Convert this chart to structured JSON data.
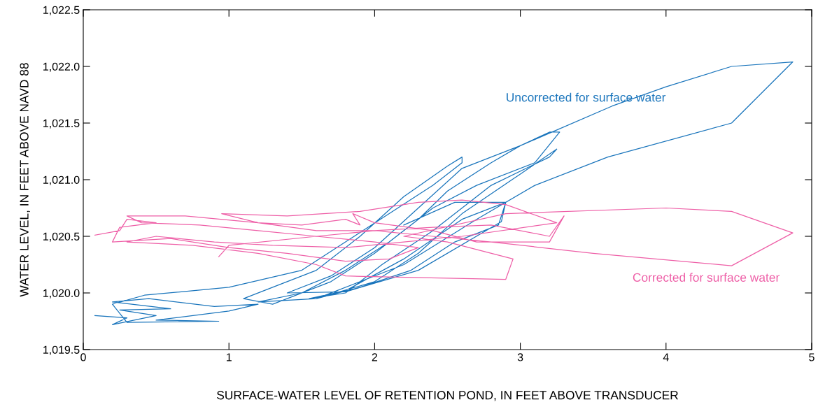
{
  "chart_data": {
    "type": "line",
    "xlabel": "SURFACE-WATER LEVEL OF RETENTION POND, IN FEET ABOVE TRANSDUCER",
    "ylabel": "WATER LEVEL, IN FEET ABOVE NAVD 88",
    "xlim": [
      0,
      5
    ],
    "xticks": [
      0,
      1,
      2,
      3,
      4,
      5
    ],
    "ylim": [
      1019.5,
      1022.5
    ],
    "yticks": [
      {
        "value": 1019.5,
        "label": "1,019.5"
      },
      {
        "value": 1020.0,
        "label": "1,020.0"
      },
      {
        "value": 1020.5,
        "label": "1,020.5"
      },
      {
        "value": 1021.0,
        "label": "1,021.0"
      },
      {
        "value": 1021.5,
        "label": "1,021.5"
      },
      {
        "value": 1022.0,
        "label": "1,022.0"
      },
      {
        "value": 1022.5,
        "label": "1,022.5"
      }
    ],
    "grid": false,
    "legend": false,
    "marker": "none",
    "line_style": "solid",
    "series": [
      {
        "name": "Uncorrected for surface water",
        "color": "#1a75bc",
        "x": [
          0.08,
          0.3,
          0.2,
          0.5,
          0.25,
          0.6,
          0.2,
          0.45,
          0.9,
          1.2,
          1.0,
          0.5,
          0.93,
          0.3,
          0.2,
          0.42,
          1.0,
          1.5,
          1.8,
          2.1,
          2.4,
          2.6,
          2.6,
          2.5,
          2.2,
          1.9,
          1.6,
          1.3,
          1.1,
          1.3,
          1.7,
          2.0,
          2.3,
          2.5,
          2.8,
          3.0,
          3.2,
          3.27,
          3.1,
          2.7,
          2.4,
          2.1,
          1.8,
          1.5,
          1.2,
          1.6,
          2.0,
          2.3,
          2.6,
          3.0,
          3.25,
          3.2,
          2.8,
          2.4,
          2.05,
          1.8,
          1.55,
          1.8,
          2.2,
          2.6,
          2.9,
          2.85,
          2.55,
          2.25,
          1.9,
          1.6,
          2.2,
          2.7,
          3.1,
          3.6,
          4.45,
          4.87,
          4.45,
          4.0,
          3.63,
          3.0,
          2.6,
          2.3,
          2.0,
          1.7,
          1.4,
          1.8,
          2.3,
          2.87,
          2.9,
          2.55,
          2.2
        ],
        "values": [
          1019.8,
          1019.78,
          1019.72,
          1019.8,
          1019.85,
          1019.86,
          1019.92,
          1019.95,
          1019.88,
          1019.9,
          1019.84,
          1019.76,
          1019.75,
          1019.74,
          1019.9,
          1019.98,
          1020.05,
          1020.2,
          1020.45,
          1020.7,
          1020.95,
          1021.15,
          1021.2,
          1021.12,
          1020.85,
          1020.5,
          1020.2,
          1020.05,
          1019.95,
          1019.9,
          1020.1,
          1020.35,
          1020.65,
          1020.9,
          1021.15,
          1021.3,
          1021.42,
          1021.42,
          1021.15,
          1020.95,
          1020.75,
          1020.45,
          1020.2,
          1020.0,
          1019.92,
          1019.95,
          1020.1,
          1020.35,
          1020.7,
          1021.05,
          1021.27,
          1021.2,
          1020.95,
          1020.55,
          1020.25,
          1020.0,
          1019.95,
          1020.02,
          1020.3,
          1020.65,
          1020.8,
          1020.6,
          1020.45,
          1020.2,
          1020.05,
          1019.95,
          1020.25,
          1020.65,
          1020.95,
          1021.2,
          1021.5,
          1022.04,
          1022.0,
          1021.82,
          1021.65,
          1021.3,
          1021.1,
          1020.75,
          1020.4,
          1020.15,
          1020.0,
          1020.01,
          1020.2,
          1020.63,
          1020.8,
          1020.8,
          1020.6
        ]
      },
      {
        "name": "Corrected for surface water",
        "color": "#ee5fa7",
        "x": [
          0.08,
          0.25,
          0.3,
          0.5,
          0.25,
          0.2,
          0.6,
          1.0,
          1.4,
          1.8,
          2.1,
          2.3,
          2.0,
          1.6,
          1.2,
          0.8,
          0.4,
          0.3,
          0.7,
          1.2,
          1.6,
          2.0,
          2.4,
          2.8,
          3.2,
          3.3,
          3.2,
          2.7,
          2.4,
          2.0,
          1.85,
          1.9,
          1.8,
          1.5,
          1.2,
          0.95,
          1.4,
          1.9,
          2.3,
          2.6,
          2.9,
          3.25,
          2.6,
          2.2,
          1.8,
          1.3,
          0.9,
          0.5,
          0.3,
          0.75,
          1.2,
          1.6,
          1.8,
          2.9,
          2.95,
          2.5,
          2.2,
          2.9,
          4.0,
          4.45,
          4.87,
          4.45,
          3.5,
          2.8,
          2.4,
          2.0,
          1.6,
          1.0,
          0.93
        ],
        "values": [
          1020.51,
          1020.55,
          1020.65,
          1020.62,
          1020.58,
          1020.45,
          1020.48,
          1020.4,
          1020.35,
          1020.28,
          1020.3,
          1020.4,
          1020.45,
          1020.5,
          1020.55,
          1020.6,
          1020.62,
          1020.68,
          1020.68,
          1020.62,
          1020.55,
          1020.55,
          1020.58,
          1020.6,
          1020.5,
          1020.68,
          1020.45,
          1020.45,
          1020.55,
          1020.62,
          1020.7,
          1020.6,
          1020.65,
          1020.6,
          1020.62,
          1020.7,
          1020.68,
          1020.72,
          1020.8,
          1020.82,
          1020.78,
          1020.62,
          1020.5,
          1020.45,
          1020.4,
          1020.42,
          1020.45,
          1020.5,
          1020.45,
          1020.42,
          1020.35,
          1020.25,
          1020.15,
          1020.12,
          1020.3,
          1020.45,
          1020.5,
          1020.7,
          1020.75,
          1020.72,
          1020.53,
          1020.24,
          1020.35,
          1020.45,
          1020.5,
          1020.55,
          1020.5,
          1020.42,
          1020.32
        ]
      }
    ]
  }
}
